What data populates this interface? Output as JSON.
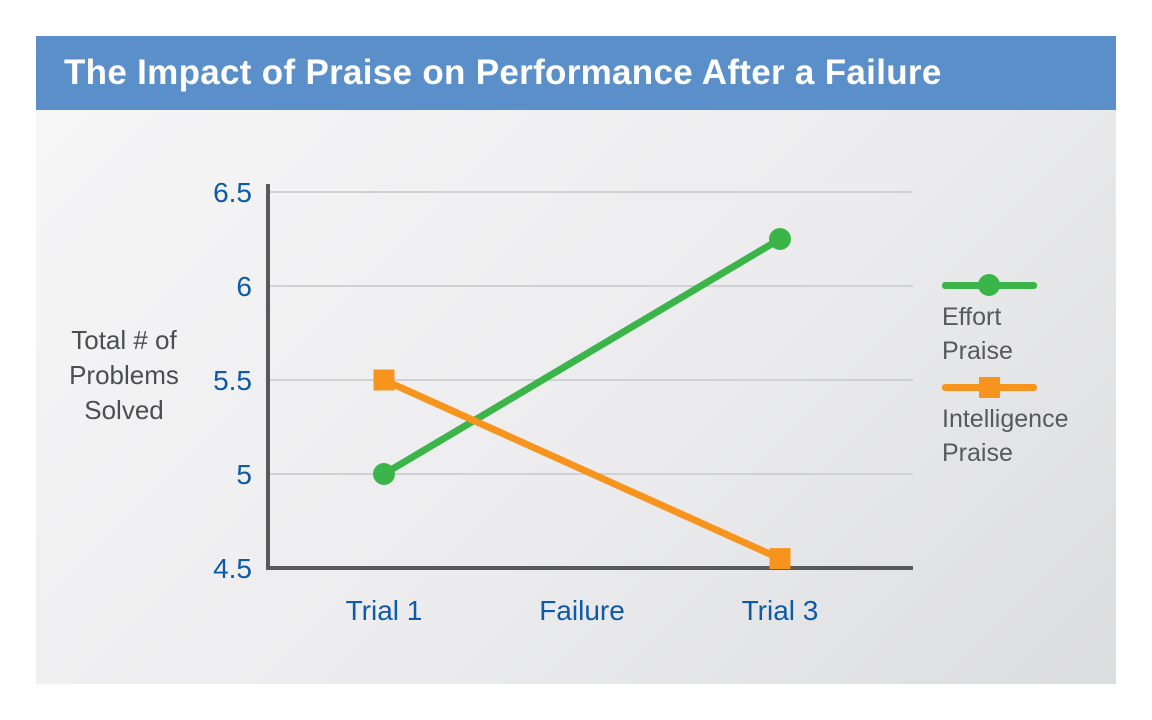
{
  "title": "The Impact of Praise on Performance After a Failure",
  "colors": {
    "title_bar_bg": "#5b8fc9",
    "title_text": "#ffffff",
    "tick_text": "#0d5aa7",
    "axis_label_text": "#4d4e50",
    "legend_text": "#58595b",
    "gridline": "#d0d1d3",
    "axis_line": "#58595b",
    "effort_praise": "#3bb54a",
    "intelligence_praise": "#f7941e",
    "panel_bg_light": "#f6f6f7",
    "panel_bg_dark": "#dcdde0",
    "page_bg": "#ffffff"
  },
  "chart_data": {
    "type": "line",
    "title": "The Impact of Praise on Performance After a Failure",
    "categories": [
      "Trial 1",
      "Failure",
      "Trial 3"
    ],
    "series": [
      {
        "name": "Effort Praise",
        "color": "#3bb54a",
        "marker": "circle",
        "points": [
          {
            "category": "Trial 1",
            "value": 5.0
          },
          {
            "category": "Trial 3",
            "value": 6.25
          }
        ]
      },
      {
        "name": "Intelligence Praise",
        "color": "#f7941e",
        "marker": "square",
        "points": [
          {
            "category": "Trial 1",
            "value": 5.5
          },
          {
            "category": "Trial 3",
            "value": 4.55
          }
        ]
      }
    ],
    "xlabel": "",
    "ylabel": "Total # of Problems Solved",
    "ylabel_lines": [
      "Total # of",
      "Problems",
      "Solved"
    ],
    "ylim": [
      4.5,
      6.5
    ],
    "yticks": [
      4.5,
      5,
      5.5,
      6,
      6.5
    ],
    "ytick_labels": [
      "4.5",
      "5",
      "5.5",
      "6",
      "6.5"
    ],
    "grid": true,
    "legend_position": "right"
  },
  "legend": {
    "items": [
      {
        "series": "Effort Praise",
        "label_lines": [
          "Effort",
          "Praise"
        ]
      },
      {
        "series": "Intelligence Praise",
        "label_lines": [
          "Intelligence",
          "Praise"
        ]
      }
    ]
  }
}
